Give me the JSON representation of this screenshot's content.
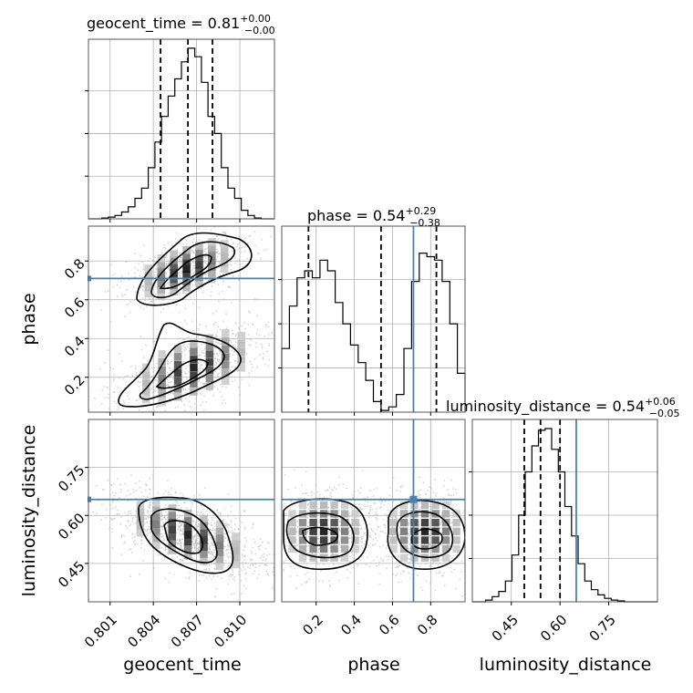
{
  "chart_data": {
    "type": "corner",
    "parameters": [
      "geocent_time",
      "phase",
      "luminosity_distance"
    ],
    "injection": {
      "phase": 0.71,
      "luminosity_distance": 0.65
    },
    "titles": [
      {
        "param": "geocent_time",
        "label": "geocent_time = 0.81",
        "sup": "+0.00",
        "sub": "−0.00"
      },
      {
        "param": "phase",
        "label": "phase = 0.54",
        "sup": "+0.29",
        "sub": "−0.38"
      },
      {
        "param": "luminosity_distance",
        "label": "luminosity_distance = 0.54",
        "sup": "+0.06",
        "sub": "−0.05"
      }
    ],
    "axis_labels": {
      "geocent_time": "geocent_time",
      "phase": "phase",
      "luminosity_distance": "luminosity_distance"
    },
    "ticks": {
      "geocent_time": [
        "0.801",
        "0.804",
        "0.807",
        "0.810"
      ],
      "phase": [
        "0.2",
        "0.4",
        "0.6",
        "0.8"
      ],
      "luminosity_distance": [
        "0.45",
        "0.60",
        "0.75"
      ]
    },
    "tick_values": {
      "geocent_time": [
        0.801,
        0.804,
        0.807,
        0.81
      ],
      "phase": [
        0.2,
        0.4,
        0.6,
        0.8
      ],
      "luminosity_distance": [
        0.45,
        0.6,
        0.75
      ]
    },
    "ranges": {
      "geocent_time": [
        0.7995,
        0.8124
      ],
      "phase": [
        0.02,
        0.98
      ],
      "luminosity_distance": [
        0.33,
        0.9
      ]
    },
    "quantiles": {
      "geocent_time": [
        0.8045,
        0.8064,
        0.8081
      ],
      "phase": [
        0.16,
        0.54,
        0.83
      ],
      "luminosity_distance": [
        0.49,
        0.54,
        0.6
      ]
    },
    "histograms": {
      "geocent_time": [
        0,
        0,
        0.005,
        0.01,
        0.02,
        0.04,
        0.07,
        0.12,
        0.18,
        0.3,
        0.45,
        0.6,
        0.72,
        0.82,
        0.92,
        1.0,
        0.95,
        0.8,
        0.6,
        0.5,
        0.3,
        0.18,
        0.12,
        0.05,
        0.02,
        0.005,
        0,
        0
      ],
      "phase": [
        0.36,
        0.6,
        0.76,
        0.8,
        0.76,
        0.86,
        0.8,
        0.62,
        0.5,
        0.38,
        0.28,
        0.18,
        0.06,
        0.01,
        0.03,
        0.1,
        0.36,
        0.74,
        0.9,
        0.88,
        0.86,
        0.74,
        0.5,
        0.22
      ],
      "luminosity_distance": [
        0,
        0,
        0.01,
        0.03,
        0.06,
        0.12,
        0.27,
        0.5,
        0.75,
        0.9,
        0.99,
        1.0,
        0.88,
        0.75,
        0.55,
        0.38,
        0.22,
        0.12,
        0.07,
        0.04,
        0.02,
        0.01,
        0.005,
        0,
        0,
        0,
        0,
        0
      ]
    },
    "grid": true,
    "colors": {
      "line": "#000000",
      "truth": "#4682b4",
      "grid": "#b0b0b0",
      "scatter": "#bbbbbb"
    }
  }
}
